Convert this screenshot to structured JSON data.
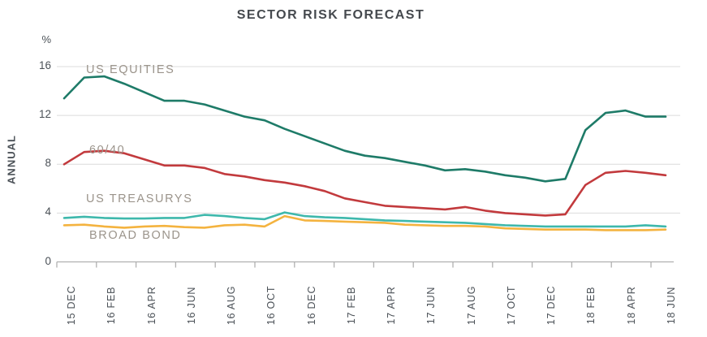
{
  "title": "SECTOR RISK FORECAST",
  "y_axis": {
    "unit_label": "%",
    "axis_label": "ANNUAL",
    "tick_labels": [
      "16",
      "12",
      "8",
      "4",
      "0"
    ]
  },
  "x_axis": {
    "tick_labels": [
      "15 DEC",
      "16 FEB",
      "16 APR",
      "16 JUN",
      "16 AUG",
      "16 OCT",
      "16 DEC",
      "17 FEB",
      "17 APR",
      "17 JUN",
      "17 AUG",
      "17 OCT",
      "17 DEC",
      "18 FEB",
      "18 APR",
      "18 JUN"
    ]
  },
  "colors": {
    "us_equities": "#1e7b68",
    "sixty_forty": "#c23a3d",
    "us_treasurys": "#3eb8ac",
    "broad_bond": "#f4b33f",
    "gridline": "#dcdcdc",
    "axis_line": "#b0b0b0",
    "axis_text": "#4b5157",
    "series_label_text": "#9b948b",
    "title_text": "#45494e"
  },
  "chart_data": {
    "type": "line",
    "title": "SECTOR RISK FORECAST",
    "ylabel": "ANNUAL",
    "y_unit": "%",
    "ylim": [
      0,
      17
    ],
    "yticks": [
      0,
      4,
      8,
      12,
      16
    ],
    "grid": "horizontal",
    "legend_position": "inline-labels-left",
    "x": [
      "15 DEC",
      "16 JAN",
      "16 FEB",
      "16 MAR",
      "16 APR",
      "16 MAY",
      "16 JUN",
      "16 JUL",
      "16 AUG",
      "16 SEP",
      "16 OCT",
      "16 NOV",
      "16 DEC",
      "17 JAN",
      "17 FEB",
      "17 MAR",
      "17 APR",
      "17 MAY",
      "17 JUN",
      "17 JUL",
      "17 AUG",
      "17 SEP",
      "17 OCT",
      "17 NOV",
      "17 DEC",
      "18 JAN",
      "18 FEB",
      "18 MAR",
      "18 APR",
      "18 MAY",
      "18 JUN"
    ],
    "x_tick_labels": [
      "15 DEC",
      "16 FEB",
      "16 APR",
      "16 JUN",
      "16 AUG",
      "16 OCT",
      "16 DEC",
      "17 FEB",
      "17 APR",
      "17 JUN",
      "17 AUG",
      "17 OCT",
      "17 DEC",
      "18 FEB",
      "18 APR",
      "18 JUN"
    ],
    "series": [
      {
        "name": "US EQUITIES",
        "color": "#1e7b68",
        "values": [
          13.4,
          15.1,
          15.2,
          14.6,
          13.9,
          13.2,
          13.2,
          12.9,
          12.4,
          11.9,
          11.6,
          10.9,
          10.3,
          9.7,
          9.1,
          8.7,
          8.5,
          8.2,
          7.9,
          7.5,
          7.6,
          7.4,
          7.1,
          6.9,
          6.6,
          6.8,
          10.8,
          12.2,
          12.4,
          11.9,
          11.9
        ]
      },
      {
        "name": "60/40",
        "color": "#c23a3d",
        "values": [
          8.0,
          9.0,
          9.1,
          8.9,
          8.4,
          7.9,
          7.9,
          7.7,
          7.2,
          7.0,
          6.7,
          6.5,
          6.2,
          5.8,
          5.2,
          4.9,
          4.6,
          4.5,
          4.4,
          4.3,
          4.5,
          4.2,
          4.0,
          3.9,
          3.8,
          3.9,
          6.3,
          7.3,
          7.45,
          7.3,
          7.1
        ]
      },
      {
        "name": "US TREASURYS",
        "color": "#3eb8ac",
        "values": [
          3.6,
          3.7,
          3.6,
          3.55,
          3.55,
          3.6,
          3.6,
          3.85,
          3.75,
          3.6,
          3.5,
          4.05,
          3.75,
          3.65,
          3.6,
          3.5,
          3.4,
          3.35,
          3.3,
          3.25,
          3.2,
          3.1,
          3.0,
          2.95,
          2.9,
          2.9,
          2.9,
          2.9,
          2.9,
          3.0,
          2.9
        ]
      },
      {
        "name": "BROAD BOND",
        "color": "#f4b33f",
        "values": [
          3.0,
          3.05,
          2.9,
          2.8,
          2.9,
          2.95,
          2.85,
          2.8,
          3.0,
          3.05,
          2.9,
          3.75,
          3.4,
          3.35,
          3.3,
          3.25,
          3.2,
          3.05,
          3.0,
          2.95,
          2.95,
          2.9,
          2.75,
          2.7,
          2.65,
          2.65,
          2.65,
          2.6,
          2.6,
          2.6,
          2.65
        ]
      }
    ]
  }
}
